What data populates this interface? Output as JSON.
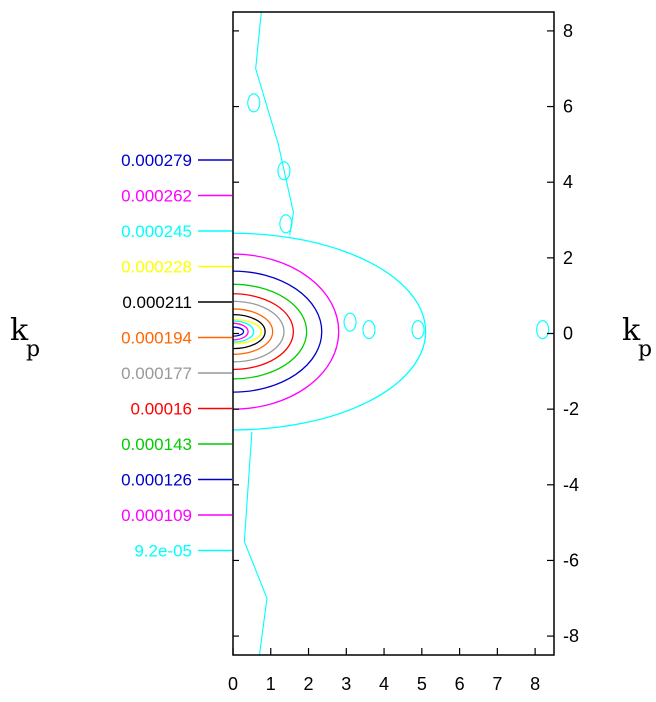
{
  "chart_data": {
    "type": "contour",
    "xlim": [
      0,
      8.5
    ],
    "ylim": [
      -8.5,
      8.5
    ],
    "x_ticks": [
      0,
      1,
      2,
      3,
      4,
      5,
      6,
      7,
      8
    ],
    "y_ticks": [
      -8,
      -6,
      -4,
      -2,
      0,
      2,
      4,
      6,
      8
    ],
    "left_axis_label": {
      "main": "k",
      "sub": "p"
    },
    "right_axis_label": {
      "main": "k",
      "sub": "p"
    },
    "grid": false,
    "legend_placement": "left",
    "levels": [
      {
        "label": "0.000279",
        "value": 0.000279,
        "color": "#0000cc",
        "extent_x": 0.28,
        "half_height": 0.12
      },
      {
        "label": "0.000262",
        "value": 0.000262,
        "color": "#ff00ff",
        "extent_x": 0.4,
        "half_height": 0.22
      },
      {
        "label": "0.000245",
        "value": 0.000245,
        "color": "#00ffff",
        "extent_x": 0.55,
        "half_height": 0.28
      },
      {
        "label": "0.000228",
        "value": 0.000228,
        "color": "#ffff00",
        "extent_x": 0.75,
        "half_height": 0.32
      },
      {
        "label": "0.000211",
        "value": 0.000211,
        "color": "#000000",
        "extent_x": 0.85,
        "half_height": 0.45
      },
      {
        "label": "0.000194",
        "value": 0.000194,
        "color": "#ff6600",
        "extent_x": 1.05,
        "half_height": 0.6
      },
      {
        "label": "0.000177",
        "value": 0.000177,
        "color": "#999999",
        "extent_x": 1.35,
        "half_height": 0.8
      },
      {
        "label": "0.00016",
        "value": 0.00016,
        "color": "#ff0000",
        "extent_x": 1.6,
        "half_height": 1.0
      },
      {
        "label": "0.000143",
        "value": 0.000143,
        "color": "#00cc00",
        "extent_x": 1.95,
        "half_height": 1.25
      },
      {
        "label": "0.000126",
        "value": 0.000126,
        "color": "#0000cc",
        "extent_x": 2.35,
        "half_height": 1.6
      },
      {
        "label": "0.000109",
        "value": 0.000109,
        "color": "#ff00ff",
        "extent_x": 2.8,
        "half_height": 2.05
      },
      {
        "label": "9.2e-05",
        "value": 9.2e-05,
        "color": "#00ffff",
        "extent_x": 5.1,
        "half_height": 2.6
      }
    ]
  }
}
